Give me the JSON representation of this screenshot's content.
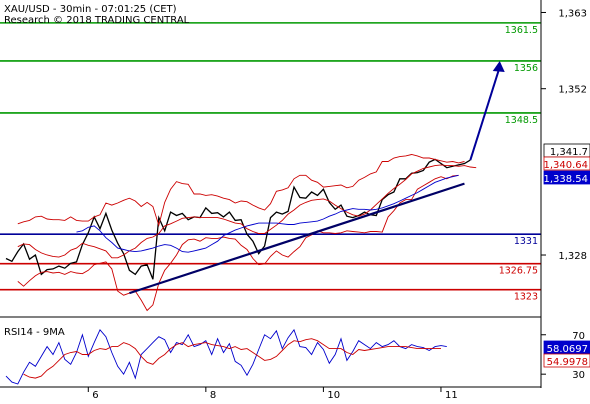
{
  "chart_data": {
    "type": "line",
    "title": "XAU/USD - 30min - 07:01:25 (CET)",
    "subtitle": "Research © 2018 TRADING CENTRAL",
    "price_axis": {
      "ticks": [
        1363,
        1352,
        1341.7,
        1340.64,
        1338.54,
        1328
      ],
      "tick_labels": [
        "1,363",
        "1,352",
        "1,341.7",
        "1,340.64",
        "1,338.54",
        "1,328"
      ],
      "ylim": [
        1319.2,
        1364.8
      ]
    },
    "x_axis": {
      "tick_labels": [
        "6",
        "8",
        "10",
        "11"
      ],
      "tick_index": [
        14,
        34,
        54,
        74
      ],
      "xlim": [
        0,
        90
      ]
    },
    "levels": [
      {
        "value": 1361.5,
        "label": "1361.5",
        "color": "#009900"
      },
      {
        "value": 1356,
        "label": "1356",
        "color": "#009900"
      },
      {
        "value": 1348.5,
        "label": "1348.5",
        "color": "#009900"
      },
      {
        "value": 1331,
        "label": "1331",
        "color": "#000099"
      },
      {
        "value": 1326.75,
        "label": "1326.75",
        "color": "#cc0000"
      },
      {
        "value": 1323,
        "label": "1323",
        "color": "#cc0000"
      }
    ],
    "price_tags": [
      {
        "label": "1,341.7",
        "value": 1341.7,
        "bg": "#ffffff",
        "fg": "#000000",
        "border": "#000000"
      },
      {
        "label": "1,340.64",
        "value": 1340.64,
        "bg": "#ffffff",
        "fg": "#cc0000",
        "border": "#cc0000"
      },
      {
        "label": "1,338.54",
        "value": 1338.54,
        "bg": "#0000cc",
        "fg": "#ffffff",
        "border": "#0000cc"
      }
    ],
    "trendline": {
      "x": [
        21,
        78
      ],
      "y": [
        1322.5,
        1338.3
      ],
      "color": "#000066"
    },
    "projection_arrow": {
      "x": [
        79,
        84
      ],
      "y": [
        1341.7,
        1356
      ],
      "color": "#000099"
    },
    "series": [
      {
        "name": "price",
        "color": "#000000",
        "values": [
          1327.5,
          1327.1,
          1328.5,
          1329.6,
          1327.4,
          1328.0,
          1325.2,
          1325.9,
          1326.0,
          1326.4,
          1326.1,
          1326.8,
          1327.0,
          1329.5,
          1331.2,
          1333.5,
          1331.8,
          1334.0,
          1331.6,
          1329.7,
          1328.2,
          1325.8,
          1325.2,
          1326.4,
          1326.6,
          1324.5,
          1333.4,
          1331.5,
          1334.2,
          1333.7,
          1334.0,
          1333.1,
          1333.5,
          1333.4,
          1334.8,
          1334.0,
          1334.1,
          1333.5,
          1334.2,
          1333.0,
          1333.1,
          1331.0,
          1330.0,
          1328.2,
          1329.3,
          1333.4,
          1334.2,
          1333.9,
          1334.3,
          1337.8,
          1336.3,
          1336.2,
          1337.1,
          1336.6,
          1337.5,
          1335.6,
          1334.6,
          1335.2,
          1333.6,
          1333.4,
          1333.7,
          1334.2,
          1333.8,
          1333.7,
          1336.0,
          1336.7,
          1337.1,
          1339.0,
          1339.0,
          1339.8,
          1339.9,
          1340.2,
          1341.4,
          1341.8,
          1341.2,
          1340.6,
          1340.8,
          1341.0,
          1341.2,
          1341.7
        ]
      },
      {
        "name": "bb-upper",
        "color": "#cc0000",
        "values": [
          1332.5,
          1332.8,
          1333.0,
          1333.5,
          1333.6,
          1333.2,
          1333.1,
          1333.1,
          1333.0,
          1333.5,
          1333.0,
          1332.9,
          1332.9,
          1333.5,
          1333.8,
          1335.5,
          1335.2,
          1335.5,
          1335.9,
          1336.2,
          1335.8,
          1335.0,
          1335.6,
          1335.0,
          1332.3,
          1335.6,
          1337.5,
          1338.6,
          1338.3,
          1338.2,
          1336.8,
          1336.8,
          1336.6,
          1336.7,
          1336.5,
          1336.2,
          1336.0,
          1335.5,
          1335.8,
          1335.7,
          1335.2,
          1334.8,
          1334.5,
          1335.4,
          1337.2,
          1337.4,
          1337.7,
          1339.0,
          1339.5,
          1339.5,
          1338.8,
          1338.5,
          1337.8,
          1337.9,
          1338.0,
          1338.1,
          1337.7,
          1337.9,
          1338.8,
          1339.2,
          1339.7,
          1340.0,
          1341.5,
          1341.5,
          1342.0,
          1342.2,
          1342.3,
          1342.5,
          1342.3,
          1342.0,
          1342.0,
          1341.8,
          1341.6,
          1341.4,
          1341.5,
          1341.3,
          1341.5
        ]
      },
      {
        "name": "bb-lower",
        "color": "#cc0000",
        "values": [
          1324.2,
          1323.5,
          1324.3,
          1325.0,
          1325.5,
          1325.6,
          1325.4,
          1325.5,
          1325.2,
          1325.6,
          1325.4,
          1325.3,
          1325.8,
          1326.6,
          1326.8,
          1327.0,
          1326.0,
          1322.8,
          1322.2,
          1322.5,
          1322.8,
          1321.5,
          1320.0,
          1320.8,
          1323.9,
          1325.8,
          1326.8,
          1328.0,
          1329.5,
          1330.2,
          1330.3,
          1330.0,
          1330.5,
          1330.4,
          1330.4,
          1330.6,
          1330.4,
          1330.3,
          1329.4,
          1328.8,
          1327.5,
          1326.6,
          1326.7,
          1327.8,
          1328.6,
          1328.0,
          1327.7,
          1328.5,
          1329.2,
          1330.5,
          1330.9,
          1331.5,
          1331.2,
          1331.2,
          1331.1,
          1331.2,
          1331.5,
          1331.4,
          1331.3,
          1331.2,
          1331.4,
          1331.4,
          1331.3,
          1333.5,
          1334.4,
          1335.5,
          1336.0,
          1336.0,
          1337.5,
          1338.0,
          1338.5,
          1339.0,
          1339.3,
          1339.0,
          1339.4,
          1339.5
        ]
      },
      {
        "name": "ma-fast",
        "color": "#cc0000",
        "values": [
          1329.2,
          1329.6,
          1329.5,
          1328.8,
          1328.3,
          1328.0,
          1327.8,
          1327.7,
          1328.0,
          1328.7,
          1329.0,
          1329.7,
          1329.4,
          1329.2,
          1328.9,
          1328.6,
          1327.6,
          1327.6,
          1328.0,
          1328.6,
          1329.0,
          1329.8,
          1330.4,
          1330.6,
          1331.1,
          1332.2,
          1332.5,
          1332.9,
          1333.3,
          1333.4,
          1333.5,
          1333.4,
          1333.4,
          1333.4,
          1333.4,
          1333.2,
          1332.9,
          1332.6,
          1332.5,
          1331.8,
          1331.4,
          1331.1,
          1331.1,
          1331.7,
          1332.3,
          1333.0,
          1333.9,
          1334.5,
          1335.2,
          1335.6,
          1335.9,
          1336.0,
          1336.1,
          1335.8,
          1335.2,
          1334.7,
          1334.2,
          1333.8,
          1333.6,
          1333.9,
          1334.5,
          1335.3,
          1336.1,
          1336.9,
          1337.6,
          1338.2,
          1338.9,
          1339.7,
          1340.1,
          1340.5,
          1340.7,
          1340.9,
          1341.0,
          1340.9,
          1340.9,
          1340.8,
          1340.9,
          1340.7,
          1340.6
        ]
      },
      {
        "name": "ma-slow",
        "color": "#0000cc",
        "values": [
          1331.3,
          1331.5,
          1332.0,
          1332.2,
          1331.5,
          1330.5,
          1329.8,
          1329.0,
          1328.8,
          1328.6,
          1328.5,
          1328.6,
          1328.8,
          1329.0,
          1329.3,
          1329.5,
          1329.4,
          1329.0,
          1328.5,
          1328.4,
          1328.6,
          1328.8,
          1329.0,
          1329.5,
          1330.0,
          1330.8,
          1331.2,
          1331.6,
          1331.9,
          1332.2,
          1332.4,
          1332.6,
          1332.6,
          1332.6,
          1332.6,
          1332.5,
          1332.4,
          1332.4,
          1332.6,
          1332.7,
          1332.8,
          1332.9,
          1333.2,
          1333.6,
          1333.9,
          1334.3,
          1334.5,
          1334.7,
          1334.6,
          1334.6,
          1334.5,
          1334.6,
          1334.8,
          1335.1,
          1335.4,
          1335.8,
          1336.2,
          1336.6,
          1337.0,
          1337.5,
          1338.0,
          1338.5,
          1338.8,
          1339.1,
          1339.3,
          1339.5
        ]
      }
    ],
    "rsi": {
      "label": "RSI14 - 9MA",
      "tick_labels": [
        "70",
        "30"
      ],
      "ticks": [
        70,
        30
      ],
      "ylim": [
        18,
        87
      ],
      "value_tags": [
        {
          "label": "58.0697",
          "value": 58.0697,
          "bg": "#0000cc",
          "fg": "#ffffff"
        },
        {
          "label": "54.9978",
          "value": 54.9978,
          "bg": "#ffffff",
          "fg": "#cc0000"
        }
      ],
      "series": [
        {
          "name": "rsi14",
          "color": "#0000cc",
          "values": [
            28,
            22,
            20,
            32,
            42,
            38,
            48,
            58,
            50,
            62,
            45,
            40,
            52,
            70,
            48,
            62,
            75,
            68,
            52,
            38,
            30,
            42,
            26,
            50,
            56,
            62,
            68,
            65,
            52,
            62,
            60,
            70,
            58,
            60,
            64,
            50,
            66,
            52,
            61,
            43,
            39,
            29,
            40,
            55,
            70,
            66,
            74,
            56,
            67,
            75,
            58,
            57,
            50,
            62,
            55,
            41,
            50,
            66,
            44,
            53,
            64,
            60,
            56,
            62,
            58,
            60,
            64,
            58,
            56,
            60,
            58,
            57,
            54,
            58,
            59,
            58
          ]
        },
        {
          "name": "ma9",
          "color": "#cc0000",
          "values": [
            30,
            27,
            26,
            28,
            34,
            38,
            44,
            50,
            52,
            53,
            50,
            50,
            54,
            56,
            55,
            58,
            58,
            62,
            60,
            56,
            48,
            42,
            40,
            46,
            50,
            56,
            60,
            62,
            58,
            60,
            61,
            62,
            60,
            59,
            58,
            56,
            58,
            55,
            56,
            52,
            48,
            44,
            45,
            48,
            54,
            60,
            64,
            63,
            65,
            66,
            64,
            60,
            56,
            56,
            56,
            52,
            50,
            55,
            54,
            55,
            56,
            57,
            58,
            58,
            58,
            58,
            57,
            56,
            56,
            56,
            56,
            56
          ]
        }
      ]
    }
  }
}
